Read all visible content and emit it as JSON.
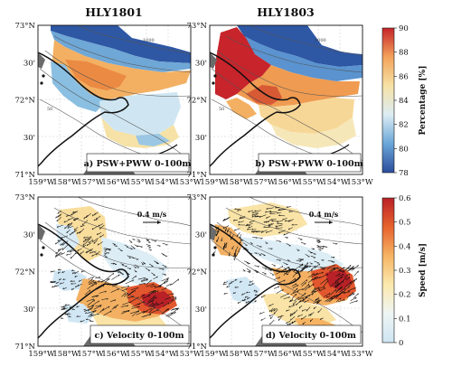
{
  "columns": [
    {
      "title": "HLY1801"
    },
    {
      "title": "HLY1803"
    }
  ],
  "latitude_ticks": [
    "73°N",
    "30'",
    "72°N",
    "30'",
    "71°N"
  ],
  "longitude_ticks": [
    "159°W",
    "158°W",
    "157°W",
    "156°W",
    "155°W",
    "154°W",
    "153°W"
  ],
  "panels": [
    {
      "label": "a) PSW+PWW 0-100m"
    },
    {
      "label": "b) PSW+PWW 0-100m"
    },
    {
      "label": "c) Velocity 0-100m",
      "scale": "0.4 m/s"
    },
    {
      "label": "d) Velocity 0-100m",
      "scale": "0.4 m/s"
    }
  ],
  "colorbars": {
    "percentage": {
      "title": "Percentage [%]",
      "ticks": [
        "78",
        "80",
        "82",
        "84",
        "86",
        "88",
        "90"
      ],
      "range": [
        78,
        90
      ],
      "colors": [
        "#2b4d9b",
        "#6aa6d8",
        "#dcecf4",
        "#f6e2a6",
        "#f3a25a",
        "#c6242a"
      ]
    },
    "speed": {
      "title": "Speed [m/s]",
      "ticks": [
        "0",
        "0.1",
        "0.2",
        "0.3",
        "0.4",
        "0.5",
        "0.6"
      ],
      "range": [
        0,
        0.6
      ],
      "colors": [
        "#cfe5f3",
        "#eef5f4",
        "#fbe9ae",
        "#f6b463",
        "#e7632e",
        "#b92127"
      ]
    }
  },
  "contour_labels": [
    "1000",
    "500",
    "200",
    "50"
  ],
  "colors": {
    "land": "#6b6b6b",
    "coast": "#111111",
    "isobath": "#555555"
  }
}
